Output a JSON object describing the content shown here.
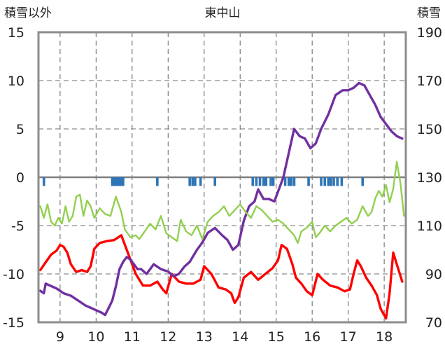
{
  "chart_data": {
    "type": "line",
    "title": "東中山",
    "ylabel_left": "積雪以外",
    "ylabel_right": "積雪",
    "x_range": [
      8.4,
      18.6
    ],
    "x_ticks": [
      9,
      10,
      11,
      12,
      13,
      14,
      15,
      16,
      17,
      18
    ],
    "left_axis": {
      "range": [
        -15,
        15
      ],
      "ticks": [
        15,
        10,
        5,
        0,
        -5,
        -10,
        -15
      ]
    },
    "right_axis": {
      "range": [
        70,
        190
      ],
      "ticks": [
        190,
        170,
        150,
        130,
        110,
        90,
        70
      ]
    },
    "grid": "dashed",
    "colors": {
      "red": "#ff0000",
      "purple": "#7030a0",
      "green": "#92d050",
      "blue": "#2e75b6"
    },
    "series": [
      {
        "axis": "left",
        "color": "#ff0000",
        "points": [
          [
            8.45,
            -9.6
          ],
          [
            8.6,
            -8.8
          ],
          [
            8.75,
            -8.0
          ],
          [
            8.9,
            -7.6
          ],
          [
            9.0,
            -7.0
          ],
          [
            9.1,
            -7.2
          ],
          [
            9.2,
            -7.8
          ],
          [
            9.3,
            -9.0
          ],
          [
            9.45,
            -9.8
          ],
          [
            9.6,
            -9.6
          ],
          [
            9.75,
            -9.8
          ],
          [
            9.85,
            -9.2
          ],
          [
            9.95,
            -7.4
          ],
          [
            10.1,
            -6.8
          ],
          [
            10.3,
            -6.6
          ],
          [
            10.5,
            -6.5
          ],
          [
            10.7,
            -6.0
          ],
          [
            10.9,
            -8.0
          ],
          [
            11.1,
            -10.0
          ],
          [
            11.3,
            -11.2
          ],
          [
            11.5,
            -11.2
          ],
          [
            11.7,
            -10.8
          ],
          [
            11.85,
            -11.6
          ],
          [
            11.95,
            -12.0
          ],
          [
            12.1,
            -10.0
          ],
          [
            12.3,
            -10.8
          ],
          [
            12.5,
            -11.0
          ],
          [
            12.7,
            -11.0
          ],
          [
            12.9,
            -10.6
          ],
          [
            13.0,
            -9.2
          ],
          [
            13.2,
            -10.0
          ],
          [
            13.4,
            -11.4
          ],
          [
            13.6,
            -11.6
          ],
          [
            13.75,
            -12.0
          ],
          [
            13.85,
            -13.0
          ],
          [
            13.95,
            -12.4
          ],
          [
            14.1,
            -10.4
          ],
          [
            14.3,
            -9.8
          ],
          [
            14.5,
            -10.6
          ],
          [
            14.7,
            -10.0
          ],
          [
            14.9,
            -9.4
          ],
          [
            15.05,
            -8.6
          ],
          [
            15.15,
            -7.0
          ],
          [
            15.3,
            -7.4
          ],
          [
            15.45,
            -9.0
          ],
          [
            15.55,
            -10.4
          ],
          [
            15.7,
            -11.0
          ],
          [
            15.85,
            -11.8
          ],
          [
            16.0,
            -12.2
          ],
          [
            16.15,
            -10.0
          ],
          [
            16.3,
            -10.6
          ],
          [
            16.5,
            -11.2
          ],
          [
            16.7,
            -11.4
          ],
          [
            16.9,
            -11.8
          ],
          [
            17.05,
            -11.6
          ],
          [
            17.15,
            -10.0
          ],
          [
            17.25,
            -8.6
          ],
          [
            17.35,
            -9.2
          ],
          [
            17.5,
            -10.4
          ],
          [
            17.65,
            -11.2
          ],
          [
            17.8,
            -12.2
          ],
          [
            17.9,
            -13.6
          ],
          [
            18.05,
            -14.6
          ],
          [
            18.15,
            -12.0
          ],
          [
            18.25,
            -7.8
          ],
          [
            18.35,
            -9.0
          ],
          [
            18.5,
            -10.8
          ]
        ]
      },
      {
        "axis": "right",
        "color": "#7030a0",
        "points": [
          [
            8.45,
            83
          ],
          [
            8.55,
            82
          ],
          [
            8.6,
            86
          ],
          [
            8.75,
            85
          ],
          [
            8.9,
            84
          ],
          [
            9.1,
            82
          ],
          [
            9.3,
            81
          ],
          [
            9.5,
            79
          ],
          [
            9.7,
            77
          ],
          [
            9.85,
            76
          ],
          [
            10.0,
            75
          ],
          [
            10.15,
            74
          ],
          [
            10.25,
            73
          ],
          [
            10.35,
            76
          ],
          [
            10.45,
            79
          ],
          [
            10.55,
            85
          ],
          [
            10.65,
            92
          ],
          [
            10.75,
            95
          ],
          [
            10.85,
            97
          ],
          [
            10.95,
            96
          ],
          [
            11.05,
            94
          ],
          [
            11.15,
            92
          ],
          [
            11.25,
            92
          ],
          [
            11.4,
            90
          ],
          [
            11.6,
            94
          ],
          [
            11.8,
            92
          ],
          [
            12.0,
            91
          ],
          [
            12.15,
            89
          ],
          [
            12.3,
            90
          ],
          [
            12.45,
            93
          ],
          [
            12.6,
            95
          ],
          [
            12.8,
            100
          ],
          [
            12.95,
            103
          ],
          [
            13.1,
            107
          ],
          [
            13.3,
            109
          ],
          [
            13.5,
            106
          ],
          [
            13.65,
            104
          ],
          [
            13.8,
            100
          ],
          [
            13.95,
            102
          ],
          [
            14.1,
            112
          ],
          [
            14.25,
            118
          ],
          [
            14.4,
            120
          ],
          [
            14.5,
            125
          ],
          [
            14.65,
            121
          ],
          [
            14.8,
            121
          ],
          [
            14.95,
            120
          ],
          [
            15.05,
            124
          ],
          [
            15.2,
            130
          ],
          [
            15.35,
            140
          ],
          [
            15.5,
            150
          ],
          [
            15.65,
            147
          ],
          [
            15.8,
            146
          ],
          [
            15.95,
            142
          ],
          [
            16.1,
            144
          ],
          [
            16.25,
            150
          ],
          [
            16.45,
            156
          ],
          [
            16.65,
            164
          ],
          [
            16.85,
            166
          ],
          [
            17.0,
            166
          ],
          [
            17.15,
            167
          ],
          [
            17.3,
            169
          ],
          [
            17.45,
            168
          ],
          [
            17.6,
            164
          ],
          [
            17.75,
            160
          ],
          [
            17.9,
            155
          ],
          [
            18.05,
            152
          ],
          [
            18.2,
            149
          ],
          [
            18.35,
            147
          ],
          [
            18.5,
            146
          ]
        ]
      },
      {
        "axis": "left",
        "color": "#92d050",
        "points": [
          [
            8.45,
            -3.0
          ],
          [
            8.55,
            -4.2
          ],
          [
            8.65,
            -2.8
          ],
          [
            8.75,
            -4.6
          ],
          [
            8.85,
            -5.0
          ],
          [
            8.95,
            -4.2
          ],
          [
            9.05,
            -4.8
          ],
          [
            9.15,
            -3.0
          ],
          [
            9.25,
            -4.6
          ],
          [
            9.35,
            -4.0
          ],
          [
            9.45,
            -2.0
          ],
          [
            9.55,
            -1.8
          ],
          [
            9.65,
            -4.0
          ],
          [
            9.75,
            -2.4
          ],
          [
            9.85,
            -3.0
          ],
          [
            9.95,
            -4.2
          ],
          [
            10.1,
            -3.2
          ],
          [
            10.25,
            -3.8
          ],
          [
            10.4,
            -4.0
          ],
          [
            10.55,
            -2.0
          ],
          [
            10.7,
            -3.6
          ],
          [
            10.8,
            -5.4
          ],
          [
            10.95,
            -6.2
          ],
          [
            11.1,
            -6.0
          ],
          [
            11.2,
            -6.4
          ],
          [
            11.35,
            -5.6
          ],
          [
            11.5,
            -4.8
          ],
          [
            11.65,
            -5.4
          ],
          [
            11.8,
            -4.0
          ],
          [
            11.95,
            -5.8
          ],
          [
            12.1,
            -6.2
          ],
          [
            12.25,
            -6.6
          ],
          [
            12.35,
            -4.4
          ],
          [
            12.5,
            -5.6
          ],
          [
            12.65,
            -6.0
          ],
          [
            12.8,
            -5.0
          ],
          [
            12.95,
            -6.4
          ],
          [
            13.1,
            -4.6
          ],
          [
            13.25,
            -4.0
          ],
          [
            13.4,
            -3.6
          ],
          [
            13.55,
            -3.0
          ],
          [
            13.7,
            -4.0
          ],
          [
            13.85,
            -3.4
          ],
          [
            14.0,
            -2.8
          ],
          [
            14.15,
            -3.6
          ],
          [
            14.3,
            -4.2
          ],
          [
            14.45,
            -3.0
          ],
          [
            14.6,
            -3.4
          ],
          [
            14.75,
            -4.0
          ],
          [
            14.9,
            -4.6
          ],
          [
            15.05,
            -4.4
          ],
          [
            15.2,
            -4.8
          ],
          [
            15.35,
            -5.4
          ],
          [
            15.5,
            -6.0
          ],
          [
            15.6,
            -6.8
          ],
          [
            15.7,
            -5.6
          ],
          [
            15.85,
            -5.2
          ],
          [
            16.0,
            -4.6
          ],
          [
            16.1,
            -6.2
          ],
          [
            16.2,
            -5.8
          ],
          [
            16.35,
            -5.0
          ],
          [
            16.5,
            -5.6
          ],
          [
            16.65,
            -5.0
          ],
          [
            16.8,
            -4.6
          ],
          [
            16.95,
            -4.2
          ],
          [
            17.1,
            -4.8
          ],
          [
            17.25,
            -4.4
          ],
          [
            17.4,
            -3.0
          ],
          [
            17.55,
            -4.0
          ],
          [
            17.65,
            -3.6
          ],
          [
            17.75,
            -2.2
          ],
          [
            17.85,
            -1.4
          ],
          [
            17.95,
            -2.0
          ],
          [
            18.05,
            -0.8
          ],
          [
            18.15,
            -2.6
          ],
          [
            18.25,
            -1.2
          ],
          [
            18.35,
            1.6
          ],
          [
            18.45,
            -0.6
          ],
          [
            18.55,
            -4.0
          ]
        ]
      }
    ],
    "bars_at_zero": [
      8.55,
      10.45,
      10.5,
      10.55,
      10.6,
      10.65,
      10.7,
      10.75,
      11.7,
      12.6,
      12.68,
      12.75,
      12.9,
      13.3,
      14.35,
      14.45,
      14.55,
      14.65,
      14.72,
      14.85,
      14.92,
      15.25,
      15.35,
      15.42,
      15.5,
      15.9,
      16.25,
      16.35,
      16.45,
      16.52,
      16.6,
      16.7,
      16.82,
      17.4
    ],
    "bars_depth": 0.9
  }
}
